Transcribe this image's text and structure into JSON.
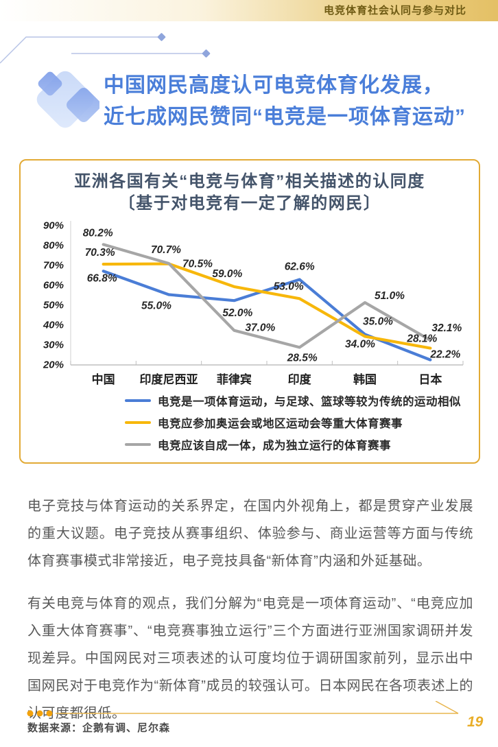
{
  "header": {
    "title": "电竞体育社会认同与参与对比"
  },
  "page_title": {
    "line1": "中国网民高度认可电竞体育化发展，",
    "line2": "近七成网民赞同“电竞是一项体育运动”"
  },
  "chart_card": {
    "title_line1": "亚洲各国有关“电竞与体育”相关描述的认同度",
    "title_line2": "〔基于对电竞有一定了解的网民〕"
  },
  "chart_data": {
    "type": "line",
    "title": "亚洲各国有关“电竞与体育”相关描述的认同度〔基于对电竞有一定了解的网民〕",
    "categories": [
      "中国",
      "印度尼西亚",
      "菲律宾",
      "印度",
      "韩国",
      "日本"
    ],
    "series": [
      {
        "name": "电竞是一项体育运动，与足球、篮球等较为传统的运动相似",
        "color": "#4A7DD6",
        "values": [
          66.8,
          55.0,
          52.0,
          62.6,
          35.0,
          22.2
        ]
      },
      {
        "name": "电竞应参加奥运会或地区运动会等重大体育赛事",
        "color": "#F7B70B",
        "values": [
          70.3,
          70.5,
          59.0,
          53.0,
          34.0,
          28.1
        ]
      },
      {
        "name": "电竞应该自成一体，成为独立运行的体育赛事",
        "color": "#A6A6A6",
        "values": [
          80.2,
          70.7,
          37.0,
          28.5,
          51.0,
          32.1
        ]
      }
    ],
    "ylim": [
      20,
      90
    ],
    "ytick_step": 10,
    "ytick_suffix": "%",
    "value_suffix": "%",
    "grid": false,
    "legend_position": "bottom",
    "label_offsets": [
      [
        [
          -2,
          15
        ],
        [
          -18,
          21
        ],
        [
          5,
          23
        ],
        [
          0,
          -14
        ],
        [
          19,
          -14
        ],
        [
          22,
          -3
        ]
      ],
      [
        [
          -5,
          -12
        ],
        [
          42,
          5
        ],
        [
          -10,
          -14
        ],
        [
          -16,
          -13
        ],
        [
          -7,
          16
        ],
        [
          -12,
          -9
        ]
      ],
      [
        [
          -8,
          -12
        ],
        [
          -4,
          -15
        ],
        [
          38,
          1
        ],
        [
          4,
          20
        ],
        [
          36,
          -5
        ],
        [
          24,
          -13
        ]
      ]
    ]
  },
  "paragraphs": [
    "电子竞技与体育运动的关系界定，在国内外视角上，都是贯穿产业发展的重大议题。电子竞技从赛事组织、体验参与、商业运营等方面与传统体育赛事模式非常接近，电子竞技具备“新体育”内涵和外延基础。",
    "有关电竞与体育的观点，我们分解为“电竞是一项体育运动”、“电竞应加入重大体育赛事”、“电竞赛事独立运行”三个方面进行亚洲国家调研并发现差异。中国网民对三项表述的认可度均位于调研国家前列，显示出中国网民对于电竞作为“新体育”成员的较强认可。日本网民在各项表述上的认可度都很低。"
  ],
  "footer": {
    "source": "数据来源：企鹅有调、尼尔森",
    "page_number": "19"
  },
  "colors": {
    "accent_gold": "#E2AA35",
    "title_blue": "#4A7ED9",
    "chart_title_navy": "#44546A",
    "series_blue": "#4A7DD6",
    "series_yellow": "#F7B70B",
    "series_gray": "#A6A6A6"
  }
}
